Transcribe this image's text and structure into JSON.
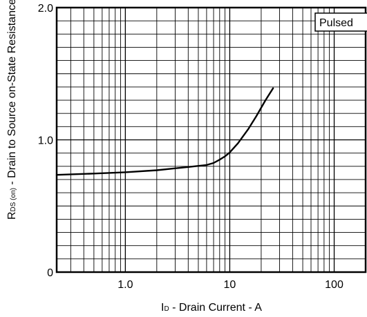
{
  "chart_data": {
    "type": "line",
    "xscale": "log",
    "xlim": [
      0.22,
      200
    ],
    "ylim": [
      0,
      2.0
    ],
    "x_ticks": [
      {
        "value": 1,
        "label": "1.0"
      },
      {
        "value": 10,
        "label": "10"
      },
      {
        "value": 100,
        "label": "100"
      }
    ],
    "y_ticks": [
      {
        "value": 0,
        "label": "0"
      },
      {
        "value": 1.0,
        "label": "1.0"
      },
      {
        "value": 2.0,
        "label": "2.0"
      }
    ],
    "xlabel": {
      "main": "I",
      "sub": "D",
      "rest": " - Drain Current - A"
    },
    "ylabel": {
      "main": "R",
      "sub1": "DS (on)",
      "rest": " - Drain to Source on-State Resistance - Ω"
    },
    "legend": {
      "label": "Pulsed",
      "position": "top-right"
    },
    "grid": true,
    "series": [
      {
        "x": [
          0.22,
          0.5,
          1.0,
          2.0,
          4.0,
          6.0,
          7.0,
          8.0,
          9.0,
          10.0,
          12.0,
          15.0,
          18.0,
          22.0,
          26.0
        ],
        "y": [
          0.735,
          0.745,
          0.755,
          0.77,
          0.795,
          0.81,
          0.825,
          0.85,
          0.875,
          0.905,
          0.975,
          1.08,
          1.18,
          1.3,
          1.39
        ]
      }
    ]
  }
}
